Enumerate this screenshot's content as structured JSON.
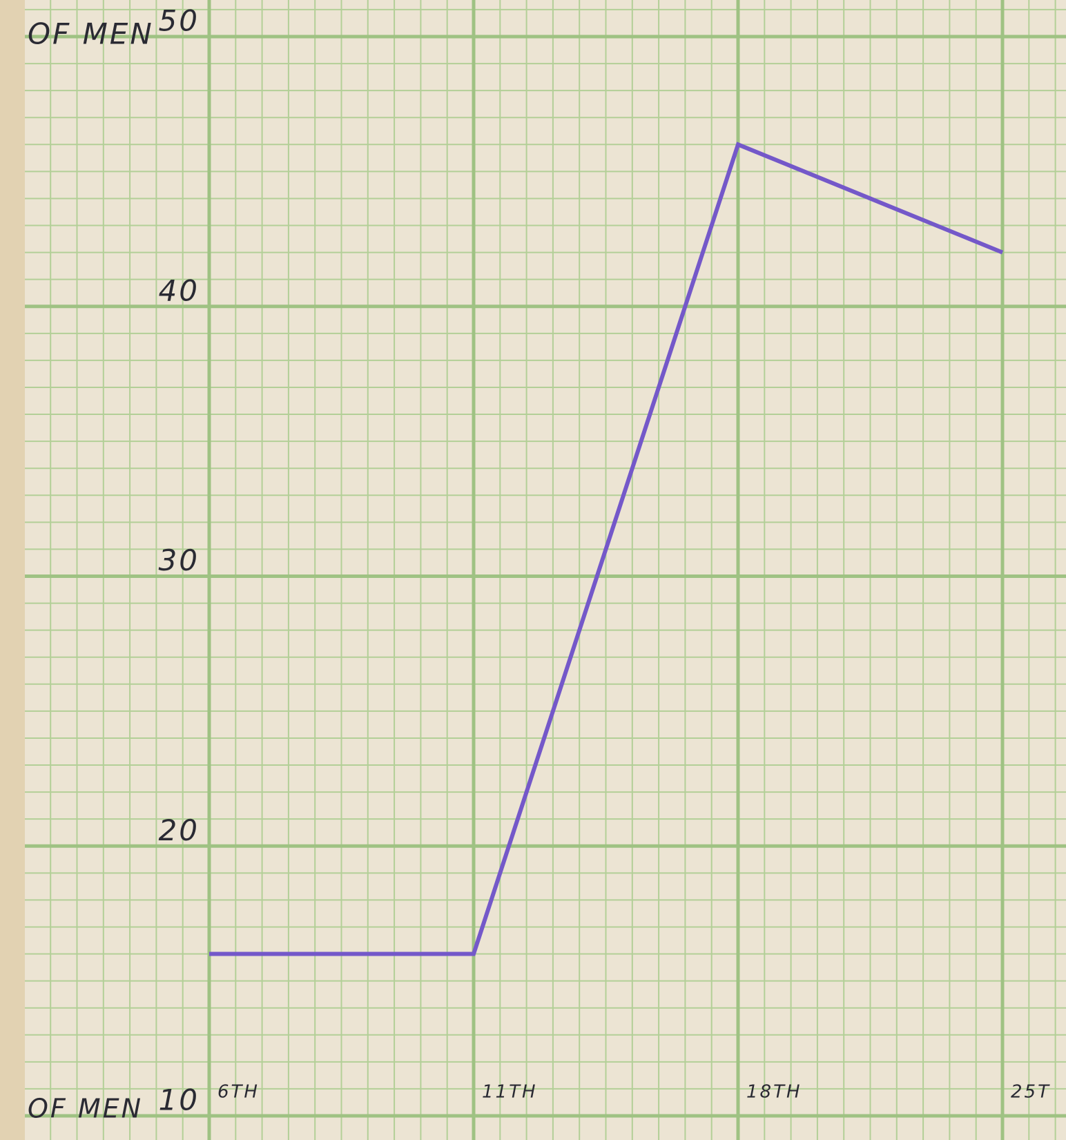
{
  "chart_data": {
    "type": "line",
    "annotations": [
      "OF MEN",
      "OF MEN"
    ],
    "categories": [
      "6TH",
      "11TH",
      "18TH",
      "25T"
    ],
    "series": [
      {
        "color": "#7458c9",
        "values": [
          16,
          16,
          46,
          42
        ]
      }
    ],
    "ylim": [
      10,
      50
    ],
    "yticks": [
      10,
      20,
      30,
      40,
      50
    ],
    "grid": true
  }
}
